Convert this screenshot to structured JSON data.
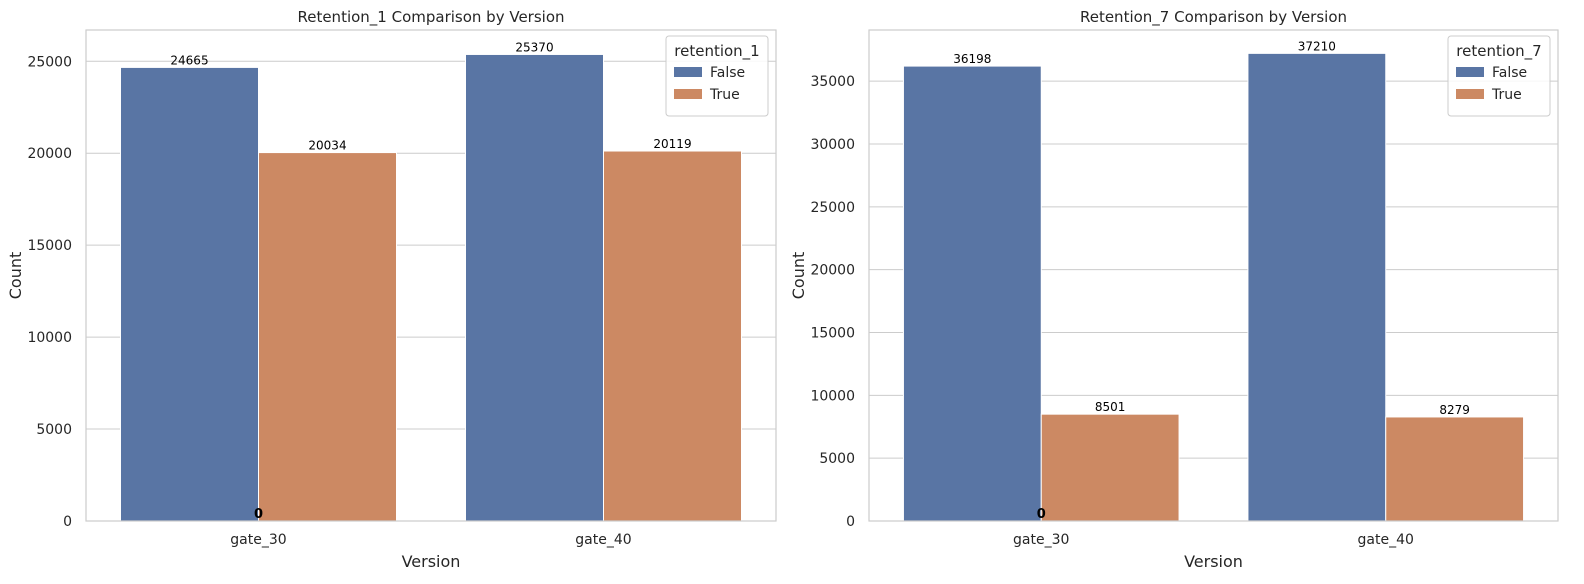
{
  "chart_data": [
    {
      "type": "bar",
      "title": "Retention_1 Comparison by Version",
      "xlabel": "Version",
      "ylabel": "Count",
      "categories": [
        "gate_30",
        "gate_40"
      ],
      "series": [
        {
          "name": "False",
          "color": "#5975a4",
          "values": [
            24665,
            25370
          ]
        },
        {
          "name": "True",
          "color": "#cc8963",
          "values": [
            20034,
            20119
          ]
        }
      ],
      "ylim": [
        0,
        26700
      ],
      "yticks": [
        0,
        5000,
        10000,
        15000,
        20000,
        25000
      ],
      "grid": true,
      "legend": {
        "title": "retention_1",
        "position": "top-right"
      },
      "annotations": [
        "0"
      ]
    },
    {
      "type": "bar",
      "title": "Retention_7 Comparison by Version",
      "xlabel": "Version",
      "ylabel": "Count",
      "categories": [
        "gate_30",
        "gate_40"
      ],
      "series": [
        {
          "name": "False",
          "color": "#5975a4",
          "values": [
            36198,
            37210
          ]
        },
        {
          "name": "True",
          "color": "#cc8963",
          "values": [
            8501,
            8279
          ]
        }
      ],
      "ylim": [
        0,
        39070
      ],
      "yticks": [
        0,
        5000,
        10000,
        15000,
        20000,
        25000,
        30000,
        35000
      ],
      "grid": true,
      "legend": {
        "title": "retention_7",
        "position": "top-right"
      },
      "annotations": [
        "0"
      ]
    }
  ]
}
